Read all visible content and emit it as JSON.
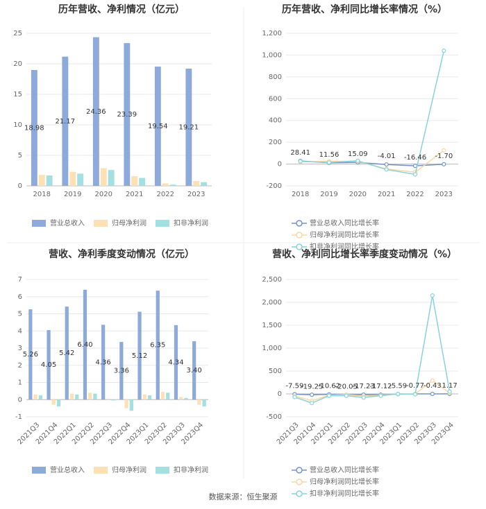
{
  "chart_data": [
    {
      "type": "bar",
      "title": "历年营收、净利情况（亿元）",
      "categories": [
        "2018",
        "2019",
        "2020",
        "2021",
        "2022",
        "2023"
      ],
      "ylim": [
        0,
        25
      ],
      "yticks": [
        0,
        5,
        10,
        15,
        20,
        25
      ],
      "grid": true,
      "series": [
        {
          "name": "营业总收入",
          "color": "#8eaadb",
          "values": [
            18.98,
            21.17,
            24.36,
            23.39,
            19.54,
            19.21
          ],
          "data_labels": true
        },
        {
          "name": "归母净利润",
          "color": "#fde0b4",
          "values": [
            1.8,
            2.3,
            2.9,
            1.6,
            0.4,
            0.8
          ]
        },
        {
          "name": "扣非净利润",
          "color": "#a3e0e1",
          "values": [
            1.7,
            2.0,
            2.6,
            1.3,
            0.2,
            0.6
          ]
        }
      ]
    },
    {
      "type": "line",
      "title": "历年营收、净利同比增长率情况（%）",
      "categories": [
        "2018",
        "2019",
        "2020",
        "2021",
        "2022",
        "2023"
      ],
      "ylim": [
        -200,
        1200
      ],
      "yticks": [
        -200,
        0,
        200,
        400,
        600,
        800,
        {
          "value": 1000,
          "label": "1,000"
        },
        {
          "value": 1200,
          "label": "1,200"
        }
      ],
      "grid": true,
      "series": [
        {
          "name": "营业总收入同比增长率",
          "color": "#7393c9",
          "values": [
            28.41,
            11.56,
            15.09,
            -4.01,
            -16.46,
            -1.7
          ],
          "value_labels": [
            "28.41",
            "11.56",
            "15.09",
            "-4.01",
            "-16.46",
            "-1.70"
          ],
          "data_labels": true
        },
        {
          "name": "归母净利润同比增长率",
          "color": "#fcd6a2",
          "values": [
            20,
            25,
            25,
            -45,
            -75,
            125
          ]
        },
        {
          "name": "扣非净利润同比增长率",
          "color": "#86d4d8",
          "values": [
            25,
            15,
            30,
            -50,
            -95,
            1040
          ]
        }
      ]
    },
    {
      "type": "bar",
      "title": "营收、净利季度变动情况（亿元）",
      "categories": [
        "2021Q3",
        "2021Q4",
        "2022Q1",
        "2022Q2",
        "2022Q3",
        "2022Q4",
        "2023Q1",
        "2023Q2",
        "2023Q3",
        "2023Q4"
      ],
      "ylim": [
        -1,
        7
      ],
      "yticks": [
        -1,
        0,
        1,
        2,
        3,
        4,
        5,
        6,
        7
      ],
      "grid": true,
      "series": [
        {
          "name": "营业总收入",
          "color": "#8eaadb",
          "values": [
            5.26,
            4.05,
            5.42,
            6.4,
            4.36,
            3.36,
            5.12,
            6.35,
            4.34,
            3.4
          ],
          "value_labels": [
            "5.26",
            "4.05",
            "5.42",
            "6.40",
            "4.36",
            "3.36",
            "5.12",
            "6.35",
            "4.34",
            "3.40"
          ],
          "data_labels": true
        },
        {
          "name": "归母净利润",
          "color": "#fde0b4",
          "values": [
            0.3,
            -0.3,
            0.35,
            0.4,
            0.05,
            -0.5,
            0.3,
            0.45,
            0.15,
            -0.3
          ]
        },
        {
          "name": "扣非净利润",
          "color": "#a3e0e1",
          "values": [
            0.25,
            -0.4,
            0.3,
            0.35,
            -0.05,
            -0.65,
            0.25,
            0.4,
            0.1,
            -0.4
          ]
        }
      ]
    },
    {
      "type": "line",
      "title": "营收、净利同比增长率季度变动情况（%）",
      "categories": [
        "2021Q3",
        "2021Q4",
        "2022Q1",
        "2022Q2",
        "2022Q3",
        "2022Q4",
        "2023Q1",
        "2023Q2",
        "2023Q3",
        "2023Q4"
      ],
      "ylim": [
        -500,
        2500
      ],
      "yticks": [
        -500,
        0,
        500,
        {
          "value": 1000,
          "label": "1,000"
        },
        {
          "value": 1500,
          "label": "1,500"
        },
        {
          "value": 2000,
          "label": "2,000"
        },
        {
          "value": 2500,
          "label": "2,500"
        }
      ],
      "grid": true,
      "series": [
        {
          "name": "营业总收入同比增长率",
          "color": "#7393c9",
          "values": [
            -7.59,
            -19.25,
            -10.62,
            -20.05,
            -17.23,
            -17.12,
            -5.59,
            -0.77,
            -0.43,
            1.17
          ],
          "data_labels": true
        },
        {
          "name": "归母净利润同比增长率",
          "color": "#fcd6a2",
          "values": [
            -50,
            -150,
            -30,
            -20,
            -50,
            -30,
            0,
            0,
            290,
            20
          ]
        },
        {
          "name": "扣非净利润同比增长率",
          "color": "#86d4d8",
          "values": [
            -70,
            -200,
            -40,
            -40,
            -80,
            -40,
            0,
            -10,
            2150,
            50
          ]
        }
      ]
    }
  ],
  "source": "数据来源：恒生聚源"
}
